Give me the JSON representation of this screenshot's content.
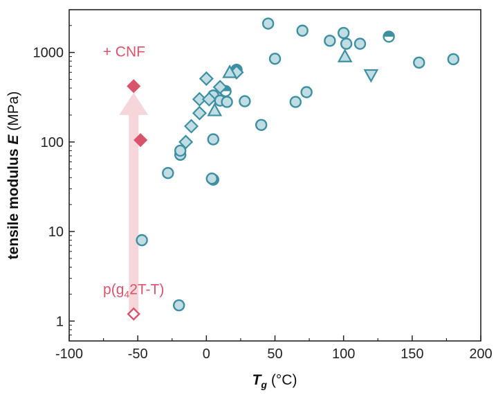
{
  "chart_data": {
    "type": "scatter",
    "xlabel": {
      "main": "T",
      "sub": "g",
      "unit": "(°C)"
    },
    "ylabel": {
      "main": "tensile modulus ",
      "var": "E",
      "unit": " (MPa)"
    },
    "xlim": [
      -100,
      200
    ],
    "ylim": [
      0.6,
      3000
    ],
    "yscale": "log",
    "x_ticks": [
      -100,
      -50,
      0,
      50,
      100,
      150,
      200
    ],
    "x_tick_labels": [
      "-100",
      "-50",
      "0",
      "50",
      "100",
      "150",
      "200"
    ],
    "y_ticks": [
      1,
      10,
      100,
      1000
    ],
    "y_tick_labels": [
      "1",
      "10",
      "100",
      "1000"
    ],
    "grid": false,
    "colors": {
      "teal_edge": "#3d8fa1",
      "teal_fill": "#bfdde3",
      "red": "#d9546b",
      "arrow": "#f4d6db"
    },
    "annotations": [
      {
        "text": "+ CNF",
        "x": -60,
        "y": 900
      },
      {
        "text_parts": [
          "p(g",
          "4",
          "2T-T)"
        ],
        "x": -53,
        "y": 2.0
      }
    ],
    "arrow": {
      "x": -53,
      "y_from": 1.3,
      "y_to": 330
    },
    "series": [
      {
        "marker": "circle",
        "points": [
          [
            -47,
            8
          ],
          [
            -20,
            1.5
          ],
          [
            -28,
            45
          ],
          [
            -19,
            72
          ],
          [
            -19,
            80
          ],
          [
            5,
            38
          ],
          [
            4,
            39
          ],
          [
            5,
            107
          ],
          [
            5,
            330
          ],
          [
            10,
            290
          ],
          [
            15,
            280
          ],
          [
            28,
            285
          ],
          [
            40,
            155
          ],
          [
            45,
            2100
          ],
          [
            50,
            850
          ],
          [
            65,
            280
          ],
          [
            70,
            1750
          ],
          [
            73,
            360
          ],
          [
            90,
            1350
          ],
          [
            100,
            1650
          ],
          [
            102,
            1250
          ],
          [
            112,
            1250
          ],
          [
            155,
            770
          ],
          [
            180,
            840
          ]
        ]
      },
      {
        "marker": "circle-half",
        "points": [
          [
            14,
            370
          ],
          [
            22,
            640
          ],
          [
            133,
            1500
          ]
        ]
      },
      {
        "marker": "diamond",
        "points": [
          [
            -15,
            100
          ],
          [
            -11,
            150
          ],
          [
            -5,
            210
          ],
          [
            -5,
            300
          ],
          [
            0,
            510
          ],
          [
            2,
            300
          ],
          [
            10,
            410
          ],
          [
            22,
            600
          ]
        ]
      },
      {
        "marker": "triangle-up",
        "points": [
          [
            6,
            225
          ],
          [
            17,
            600
          ],
          [
            101,
            900
          ]
        ]
      },
      {
        "marker": "triangle-down",
        "points": [
          [
            120,
            560
          ]
        ]
      },
      {
        "marker": "diamond-red-filled",
        "points": [
          [
            -53,
            420
          ],
          [
            -48,
            105
          ]
        ]
      },
      {
        "marker": "diamond-red-open",
        "points": [
          [
            -53,
            1.2
          ]
        ]
      }
    ]
  }
}
